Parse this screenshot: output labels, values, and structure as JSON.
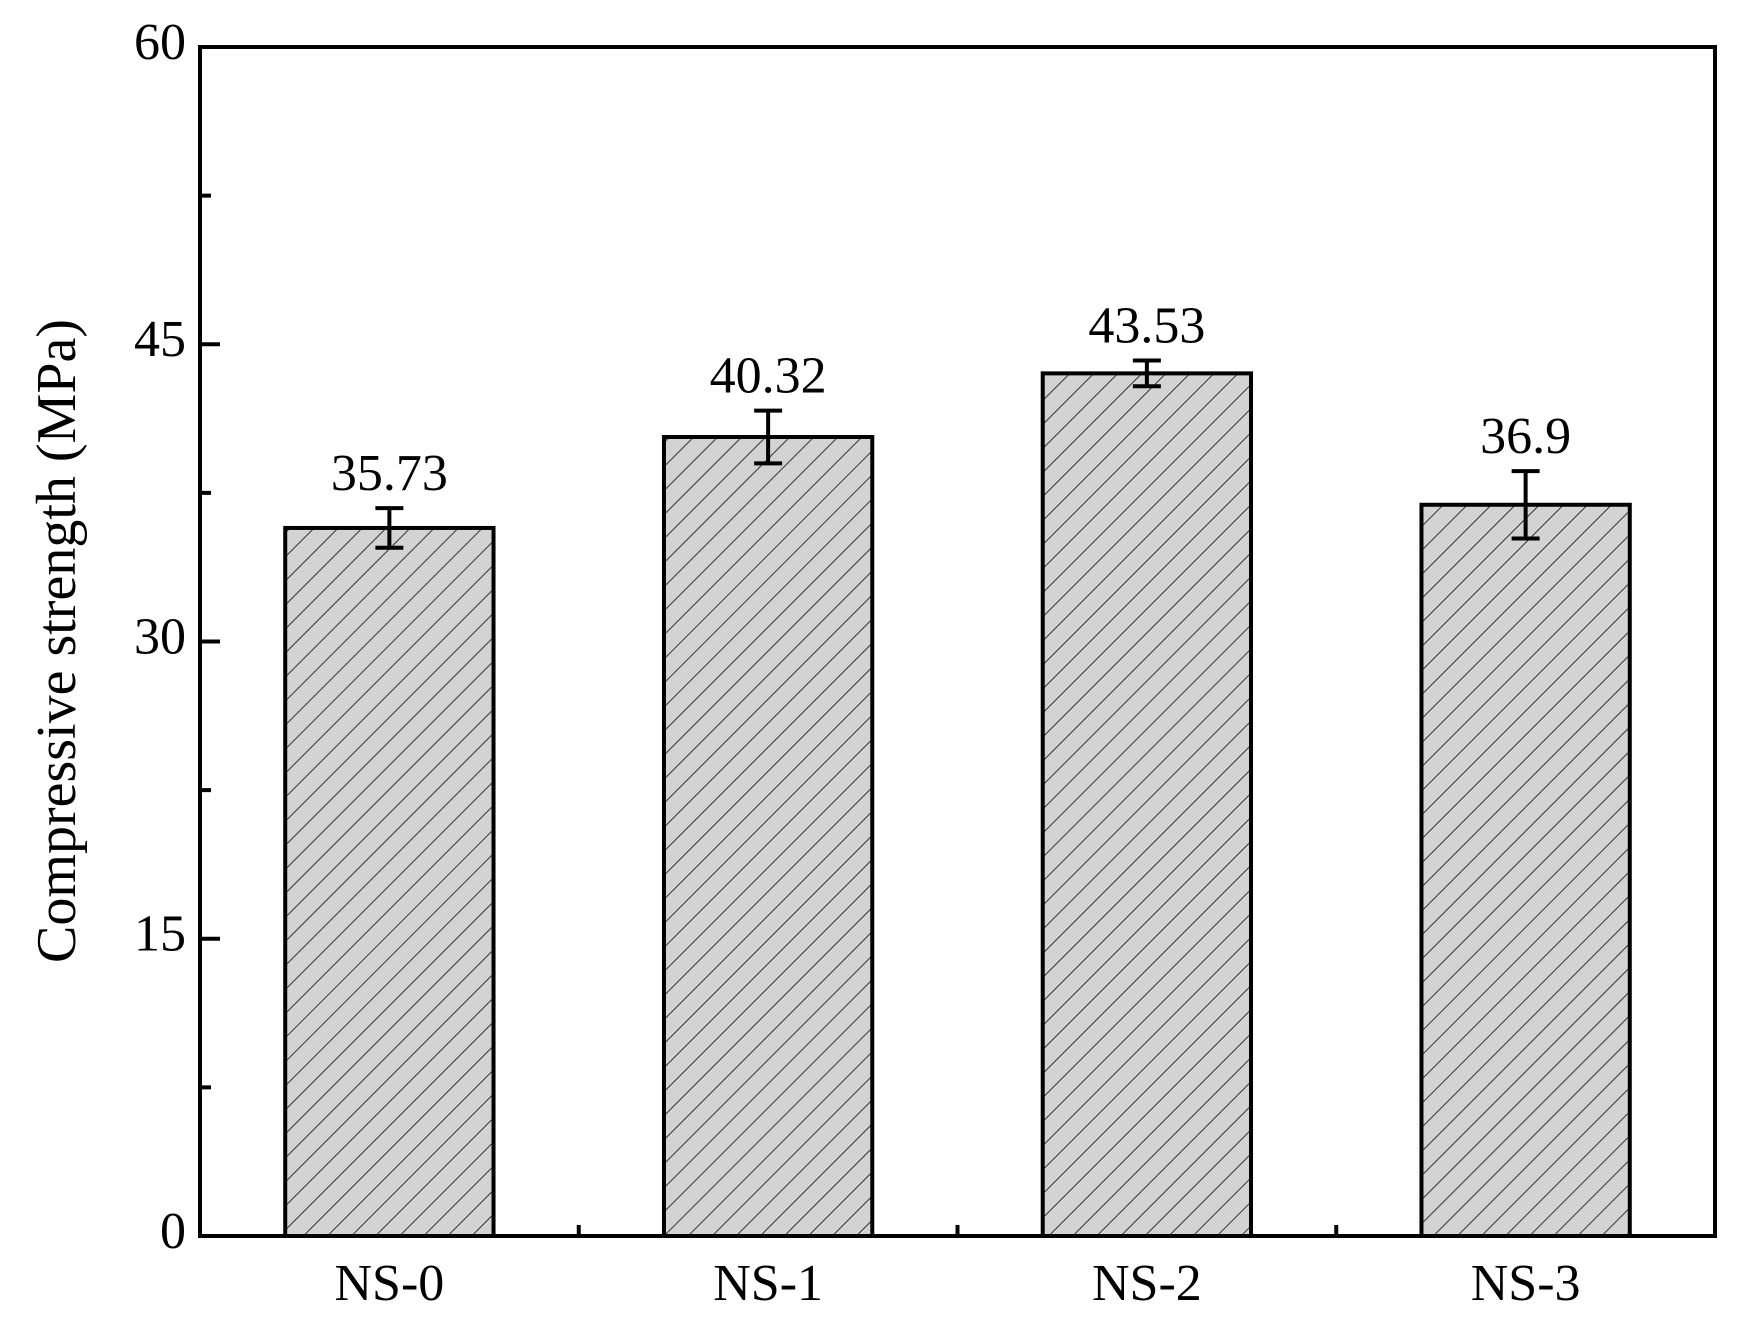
{
  "chart_data": {
    "type": "bar",
    "y_label": "Compressive strength (MPa)",
    "categories": [
      "NS-0",
      "NS-1",
      "NS-2",
      "NS-3"
    ],
    "values": [
      35.73,
      40.32,
      43.53,
      36.9
    ],
    "errors": [
      1.0,
      1.33,
      0.65,
      1.7
    ],
    "color": "#d3d3d3",
    "ylim": [
      0,
      60
    ],
    "yticks": [
      0,
      15,
      30,
      45,
      60
    ],
    "grid": false
  }
}
